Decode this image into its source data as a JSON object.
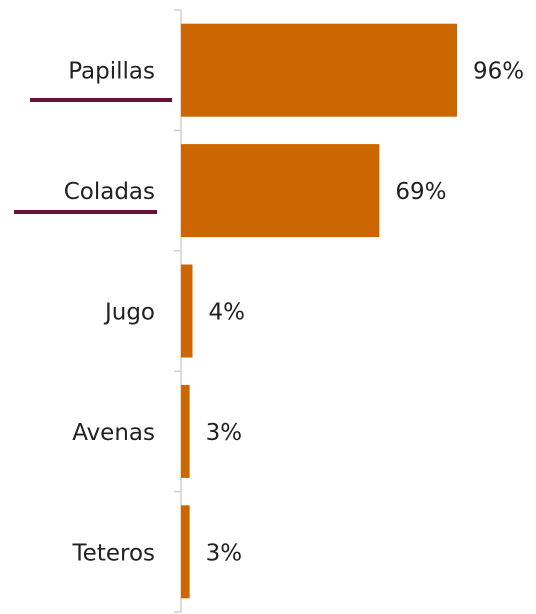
{
  "chart_data": {
    "type": "bar",
    "orientation": "horizontal",
    "categories": [
      "Papillas",
      "Coladas",
      "Jugo",
      "Avenas",
      "Teteros"
    ],
    "values": [
      96,
      69,
      4,
      3,
      3
    ],
    "value_labels": [
      "96%",
      "69%",
      "4%",
      "3%",
      "3%"
    ],
    "color": "#cc6600",
    "xlim": [
      0,
      100
    ]
  }
}
